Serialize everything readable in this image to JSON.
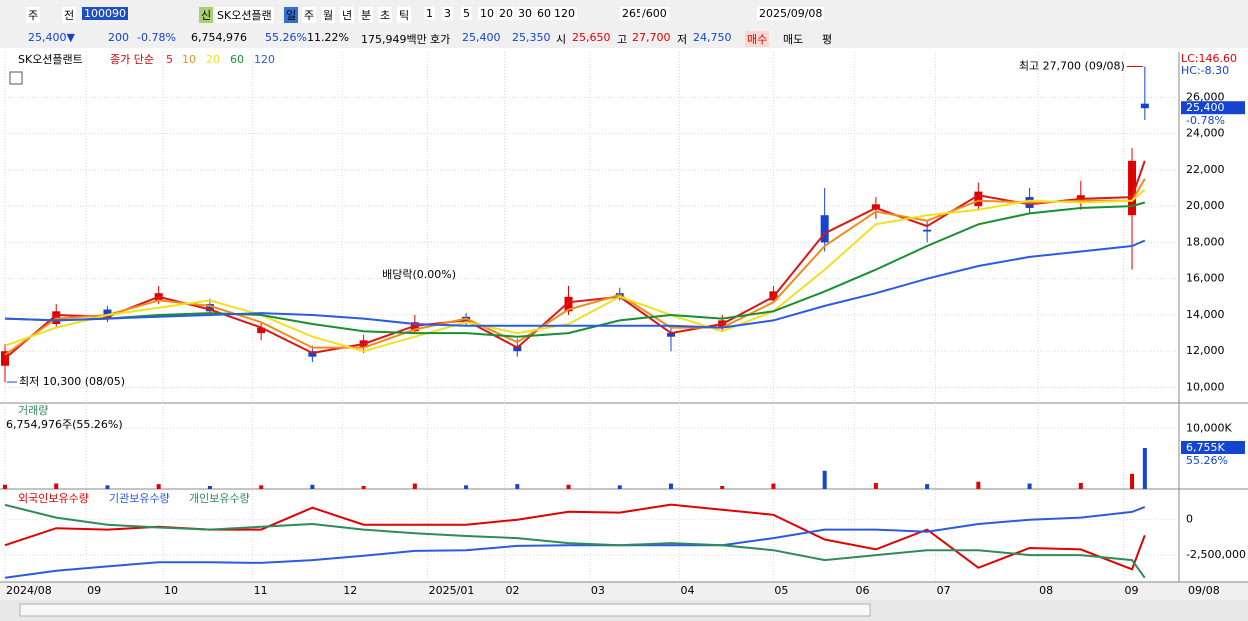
{
  "toolbar": {
    "row1": [
      "주",
      "전",
      "100090",
      "신",
      "SK오션플랜",
      "일",
      "주",
      "월",
      "년",
      "분",
      "초",
      "틱",
      "1",
      "3",
      "5",
      "10",
      "20",
      "30",
      "60",
      "120",
      "265",
      "/600",
      "2025/09/08"
    ],
    "row2": [
      "25,400▼",
      "200",
      "-0.78%",
      "6,754,976",
      "55.26%",
      "11.22%",
      "175,949백만",
      "호가",
      "25,400",
      "25,350",
      "시",
      "25,650",
      "고",
      "27,700",
      "저",
      "24,750",
      "매수",
      "매도",
      "평"
    ]
  },
  "chart_data": [
    {
      "type": "candlestick",
      "title": "SK오션플랜트",
      "legend_label": "종가 단순",
      "x": [
        0,
        12,
        24,
        36,
        48,
        60,
        72,
        84,
        96,
        108,
        120,
        132,
        144,
        156,
        168,
        180,
        192,
        204,
        216,
        228,
        240,
        252,
        264,
        267
      ],
      "open": [
        11200,
        13500,
        14300,
        14800,
        14600,
        13000,
        12000,
        12200,
        13100,
        13900,
        12300,
        14200,
        15200,
        13000,
        13300,
        14800,
        19500,
        19800,
        18700,
        20000,
        20500,
        20200,
        19500,
        25650
      ],
      "high": [
        12400,
        14600,
        14500,
        15600,
        14900,
        13600,
        12300,
        12900,
        14000,
        14100,
        12700,
        15600,
        15500,
        13400,
        14000,
        15600,
        21000,
        20500,
        19200,
        21300,
        21000,
        21400,
        23200,
        27700
      ],
      "low": [
        10300,
        13300,
        13600,
        14600,
        14000,
        12600,
        11400,
        11900,
        13000,
        13400,
        11700,
        14000,
        14800,
        12000,
        13100,
        14700,
        17500,
        19300,
        18000,
        19800,
        19600,
        19800,
        16500,
        24750
      ],
      "close": [
        12000,
        14200,
        13800,
        15200,
        14200,
        13300,
        11700,
        12600,
        13600,
        13600,
        12000,
        15000,
        14900,
        12800,
        13700,
        15300,
        18000,
        20100,
        18600,
        20800,
        19900,
        20600,
        22500,
        25400
      ],
      "up_color": "#e00000",
      "down_color": "#1444d0",
      "series": [
        {
          "name": "5",
          "color": "#d81818",
          "values": [
            11600,
            14000,
            13900,
            15000,
            14300,
            13300,
            11900,
            12400,
            13400,
            13700,
            12200,
            14700,
            15000,
            13000,
            13500,
            15000,
            18500,
            19900,
            18900,
            20600,
            20100,
            20400,
            20500,
            22500
          ]
        },
        {
          "name": "10",
          "color": "#f08c1c",
          "values": [
            11800,
            13800,
            14000,
            14800,
            14500,
            13600,
            12200,
            12200,
            13200,
            13800,
            12500,
            14300,
            15100,
            13300,
            13300,
            14700,
            17800,
            19700,
            19200,
            20300,
            20200,
            20300,
            20300,
            21500
          ]
        },
        {
          "name": "20",
          "color": "#f0e020",
          "values": [
            12300,
            13300,
            14000,
            14400,
            14800,
            14000,
            12800,
            12000,
            12800,
            13600,
            13000,
            13500,
            15000,
            14000,
            13100,
            14200,
            16500,
            19000,
            19500,
            19800,
            20300,
            20200,
            20300,
            20900
          ]
        },
        {
          "name": "60",
          "color": "#189030",
          "values": [
            13800,
            13700,
            13800,
            14000,
            14100,
            14000,
            13500,
            13100,
            13000,
            13000,
            12800,
            13000,
            13700,
            14000,
            13800,
            14200,
            15300,
            16500,
            17800,
            19000,
            19600,
            19900,
            20000,
            20200
          ]
        },
        {
          "name": "120",
          "color": "#2c5ae0",
          "values": [
            13800,
            13700,
            13800,
            13900,
            14000,
            14100,
            14000,
            13800,
            13500,
            13400,
            13400,
            13400,
            13400,
            13400,
            13300,
            13700,
            14500,
            15200,
            16000,
            16700,
            17200,
            17500,
            17800,
            18100
          ]
        }
      ],
      "xlim": [
        0,
        275
      ],
      "xticks": [
        {
          "value": 0,
          "label": "2024/08"
        },
        {
          "value": 19,
          "label": "09"
        },
        {
          "value": 37,
          "label": "10"
        },
        {
          "value": 58,
          "label": "11"
        },
        {
          "value": 79,
          "label": "12"
        },
        {
          "value": 99,
          "label": "2025/01"
        },
        {
          "value": 117,
          "label": "02"
        },
        {
          "value": 137,
          "label": "03"
        },
        {
          "value": 158,
          "label": "04"
        },
        {
          "value": 180,
          "label": "05"
        },
        {
          "value": 199,
          "label": "06"
        },
        {
          "value": 218,
          "label": "07"
        },
        {
          "value": 242,
          "label": "08"
        },
        {
          "value": 262,
          "label": "09"
        }
      ],
      "last_date": "09/08",
      "ylim": [
        9200,
        28500
      ],
      "yticks": [
        {
          "value": 10000,
          "label": "10,000"
        },
        {
          "value": 12000,
          "label": "12,000"
        },
        {
          "value": 14000,
          "label": "14,000"
        },
        {
          "value": 16000,
          "label": "16,000"
        },
        {
          "value": 18000,
          "label": "18,000"
        },
        {
          "value": 20000,
          "label": "20,000"
        },
        {
          "value": 22000,
          "label": "22,000"
        },
        {
          "value": 24000,
          "label": "24,000"
        },
        {
          "value": 26000,
          "label": "26,000"
        }
      ],
      "grid": true,
      "lc_label": "LC:146.60",
      "hc_label": "HC:-8.30",
      "current": {
        "value": 25400,
        "label": "25,400"
      },
      "change_label": "-0.78%",
      "annotations": [
        {
          "text": "최고 27,700 (09/08)",
          "x": 267,
          "y": 27700,
          "side": "left"
        },
        {
          "text": "최저 10,300 (08/05)",
          "x": 0,
          "y": 10300,
          "side": "right"
        },
        {
          "text": "배당락(0.00%)",
          "x": 97,
          "y": 16200,
          "side": "center"
        }
      ]
    },
    {
      "type": "bar",
      "title": "거래량",
      "subtitle": "6,754,976주(55.26%)",
      "x": [
        0,
        12,
        24,
        36,
        48,
        60,
        72,
        84,
        96,
        108,
        120,
        132,
        144,
        156,
        168,
        180,
        192,
        204,
        216,
        228,
        240,
        252,
        264,
        267
      ],
      "values": [
        700,
        900,
        600,
        800,
        500,
        600,
        700,
        500,
        900,
        600,
        800,
        700,
        600,
        900,
        500,
        900,
        3000,
        1000,
        800,
        1200,
        900,
        1000,
        2500,
        6755
      ],
      "ylim": [
        0,
        14000
      ],
      "yticks": [
        {
          "value": 10000,
          "label": "10,000K"
        }
      ],
      "current": {
        "value": 6755,
        "label": "6,755K"
      },
      "ratio_label": "55.26%"
    },
    {
      "type": "line",
      "x": [
        0,
        12,
        24,
        36,
        48,
        60,
        72,
        84,
        96,
        108,
        120,
        132,
        144,
        156,
        168,
        180,
        192,
        204,
        216,
        228,
        240,
        252,
        264,
        267
      ],
      "series": [
        {
          "name": "외국인보유수량",
          "color": "#e00000",
          "values": [
            -1800000,
            -600000,
            -700000,
            -500000,
            -700000,
            -700000,
            850000,
            -350000,
            -350000,
            -350000,
            0,
            570000,
            500000,
            1070000,
            700000,
            350000,
            -1400000,
            -2100000,
            -700000,
            -3400000,
            -2000000,
            -2100000,
            -3500000,
            -1100000
          ]
        },
        {
          "name": "기관보유수량",
          "color": "#2c5ae0",
          "values": [
            -4100000,
            -3600000,
            -3300000,
            -3000000,
            -3000000,
            -3050000,
            -2850000,
            -2550000,
            -2200000,
            -2150000,
            -1850000,
            -1800000,
            -1800000,
            -1800000,
            -1800000,
            -1300000,
            -700000,
            -700000,
            -850000,
            -300000,
            0,
            150000,
            550000,
            900000
          ]
        },
        {
          "name": "개인보유수량",
          "color": "#2e8c5a",
          "values": [
            1050000,
            150000,
            -350000,
            -550000,
            -700000,
            -500000,
            -300000,
            -700000,
            -950000,
            -1150000,
            -1300000,
            -1650000,
            -1800000,
            -1650000,
            -1800000,
            -2150000,
            -2850000,
            -2500000,
            -2150000,
            -2150000,
            -2500000,
            -2500000,
            -2850000,
            -4100000
          ]
        }
      ],
      "ylim": [
        -4400000,
        2100000
      ],
      "yticks": [
        0,
        {
          "value": -2500000,
          "label": "-2,500,000"
        }
      ]
    }
  ]
}
